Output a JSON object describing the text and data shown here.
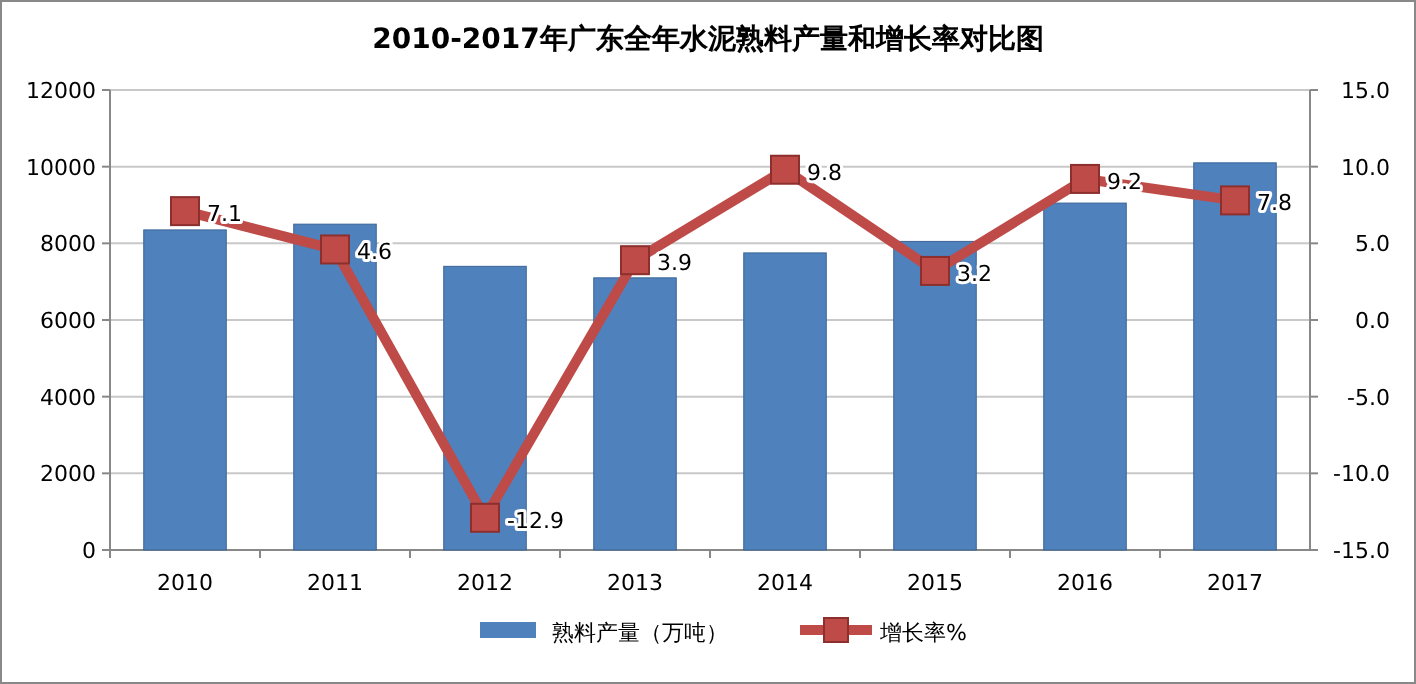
{
  "chart_data": {
    "type": "bar",
    "title": "2010-2017年广东全年水泥熟料产量和增长率对比图",
    "categories": [
      "2010",
      "2011",
      "2012",
      "2013",
      "2014",
      "2015",
      "2016",
      "2017"
    ],
    "series": [
      {
        "name": "熟料产量（万吨）",
        "color": "#4f81bd",
        "values": [
          8350,
          8500,
          7400,
          7100,
          7750,
          8050,
          9050,
          10100
        ]
      },
      {
        "name": "增长率%",
        "type": "line",
        "axis": "y2",
        "color": "#be4b48",
        "values": [
          7.1,
          4.6,
          -12.9,
          3.9,
          9.8,
          3.2,
          9.2,
          7.8
        ],
        "value_labels": [
          "7.1",
          "4.6",
          "-12.9",
          "3.9",
          "9.8",
          "3.2",
          "9.2",
          "7.8"
        ]
      }
    ],
    "ylim": [
      0,
      12000
    ],
    "yticks": [
      0,
      2000,
      4000,
      6000,
      8000,
      10000,
      12000
    ],
    "y2lim": [
      -15,
      15
    ],
    "y2ticks": [
      {
        "value": -15,
        "label": "-15.0"
      },
      {
        "value": -10,
        "label": "-10.0"
      },
      {
        "value": -5,
        "label": "-5.0"
      },
      {
        "value": 0,
        "label": "0.0"
      },
      {
        "value": 5,
        "label": "5.0"
      },
      {
        "value": 10,
        "label": "10.0"
      },
      {
        "value": 15,
        "label": "15.0"
      }
    ],
    "grid": "y",
    "legend": "bottom",
    "marker": "square"
  }
}
